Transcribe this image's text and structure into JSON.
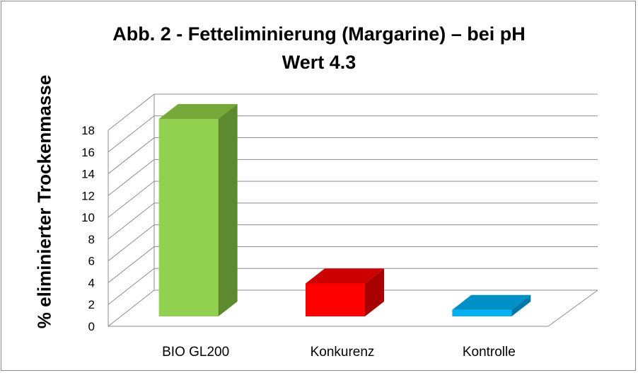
{
  "chart_data": {
    "type": "bar",
    "title_line1": "Abb. 2 - Fetteliminierung (Margarine) – bei pH",
    "title_line2": "Wert 4.3",
    "ylabel": "% eliminierter Trockenmasse",
    "xlabel": "",
    "ylim": [
      0,
      18
    ],
    "yticks": [
      "0",
      "2",
      "4",
      "6",
      "8",
      "10",
      "12",
      "14",
      "16",
      "18"
    ],
    "categories": [
      "BIO GL200",
      "Konkurenz",
      "Kontrolle"
    ],
    "values": [
      18,
      3,
      0.6
    ],
    "grid": true,
    "three_d": true,
    "colors": [
      {
        "front": "#92d050",
        "side": "#5e8a2f",
        "top": "#77a83a"
      },
      {
        "front": "#ff0000",
        "side": "#a80000",
        "top": "#cc0000"
      },
      {
        "front": "#00b0f0",
        "side": "#0078a8",
        "top": "#0090c8"
      }
    ]
  }
}
